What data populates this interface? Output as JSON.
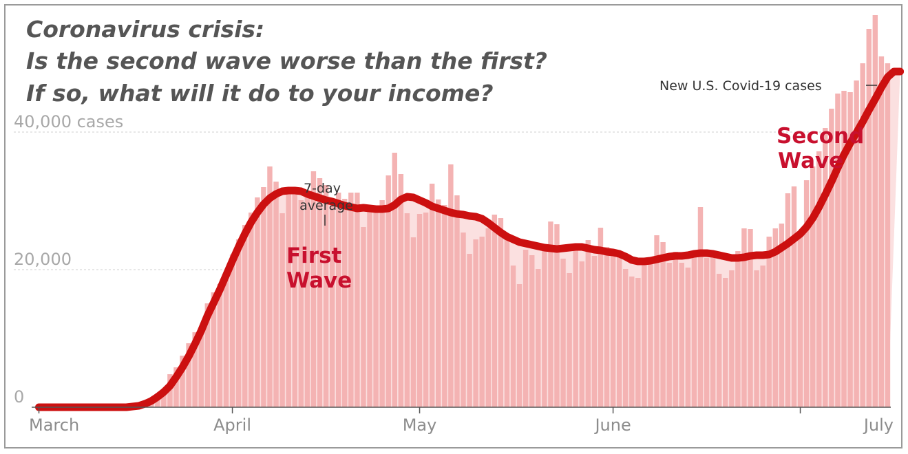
{
  "title_lines": [
    "Coronavirus crisis:",
    "Is the second wave worse than the first?",
    "If so, what will it do to your income?"
  ],
  "colors": {
    "bar": "#f4b3b3",
    "fill": "#fbe0e0",
    "line": "#cc1010",
    "wave_text": "#c8102e",
    "grid": "#cfcfcf",
    "axis": "#555555"
  },
  "chart_data": {
    "type": "bar",
    "title": "",
    "xlabel": "",
    "ylabel": "",
    "series_label": "New U.S. Covid-19 cases",
    "average_label": [
      "7-day",
      "average"
    ],
    "ylim": [
      0,
      50000
    ],
    "y_ticks": [
      {
        "value": 0,
        "label": "0"
      },
      {
        "value": 20000,
        "label": "20,000"
      },
      {
        "value": 40000,
        "label": "40,000 cases"
      }
    ],
    "x_ticks": [
      {
        "day": 0,
        "label": "March"
      },
      {
        "day": 31,
        "label": "April"
      },
      {
        "day": 61,
        "label": "May"
      },
      {
        "day": 92,
        "label": "June"
      },
      {
        "day": 122,
        "label": "July"
      }
    ],
    "start_date": "March 1",
    "bars": [
      0,
      0,
      0,
      0,
      0,
      0,
      0,
      0,
      0,
      0,
      0,
      0,
      0,
      0,
      0,
      0,
      200,
      500,
      1100,
      2000,
      2700,
      4800,
      5800,
      7500,
      9300,
      10900,
      10600,
      15100,
      16700,
      17900,
      18500,
      22200,
      24400,
      26500,
      28300,
      30500,
      32000,
      35000,
      32800,
      28200,
      31100,
      31400,
      30100,
      30500,
      34300,
      33300,
      32300,
      29800,
      31200,
      30300,
      31200,
      31200,
      26200,
      29100,
      28400,
      30100,
      33700,
      37000,
      33900,
      28200,
      24700,
      28100,
      28300,
      32500,
      30200,
      29400,
      35300,
      30800,
      25400,
      22300,
      24400,
      24800,
      26000,
      28000,
      27500,
      25200,
      20600,
      17900,
      22900,
      22100,
      20100,
      23600,
      27000,
      26600,
      21600,
      19500,
      22900,
      21200,
      24300,
      22000,
      26100,
      23300,
      22600,
      21900,
      20100,
      19000,
      18800,
      21700,
      20800,
      25000,
      24000,
      21000,
      22600,
      21000,
      20300,
      22100,
      29100,
      21700,
      22600,
      19400,
      18800,
      19900,
      22700,
      26000,
      25900,
      19900,
      20600,
      24800,
      26000,
      26700,
      31100,
      32100,
      25200,
      33000,
      35000,
      37200,
      40600,
      43400,
      45600,
      46000,
      45800,
      47500,
      50000,
      55000,
      57000,
      51000,
      50000
    ],
    "average": [
      0,
      0,
      0,
      0,
      0,
      0,
      0,
      0,
      0,
      0,
      0,
      0,
      0,
      0,
      0,
      100,
      200,
      500,
      900,
      1500,
      2200,
      3100,
      4400,
      5800,
      7400,
      9200,
      11100,
      13300,
      15200,
      17100,
      19200,
      21300,
      23300,
      25200,
      26900,
      28300,
      29500,
      30400,
      31000,
      31400,
      31500,
      31500,
      31400,
      31000,
      30700,
      30400,
      30100,
      29900,
      29600,
      29300,
      29100,
      28900,
      29000,
      28900,
      28800,
      28800,
      28900,
      29400,
      30200,
      30600,
      30500,
      30100,
      29700,
      29200,
      28900,
      28600,
      28300,
      28100,
      28000,
      27800,
      27700,
      27400,
      26800,
      26100,
      25400,
      24800,
      24400,
      24000,
      23800,
      23600,
      23400,
      23200,
      23100,
      23000,
      23100,
      23200,
      23300,
      23300,
      23100,
      22900,
      22800,
      22600,
      22500,
      22300,
      21900,
      21400,
      21200,
      21200,
      21300,
      21500,
      21700,
      21900,
      22000,
      22000,
      22100,
      22300,
      22400,
      22400,
      22300,
      22100,
      21900,
      21700,
      21700,
      21800,
      22000,
      22100,
      22100,
      22200,
      22600,
      23200,
      23800,
      24500,
      25200,
      26200,
      27500,
      29100,
      30900,
      32800,
      34800,
      36700,
      38400,
      39900,
      41500,
      43200,
      44800,
      46500,
      48000,
      48800,
      48800
    ]
  }
}
